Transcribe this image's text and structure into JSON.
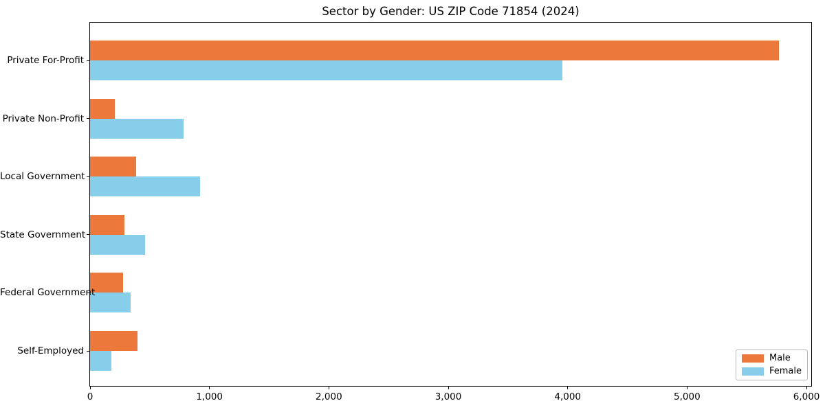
{
  "chart_data": {
    "type": "bar",
    "orientation": "horizontal",
    "title": "Sector by Gender: US ZIP Code 71854 (2024)",
    "categories": [
      "Private For-Profit",
      "Private Non-Profit",
      "Local Government",
      "State Government",
      "Federal Government",
      "Self-Employed"
    ],
    "series": [
      {
        "name": "Male",
        "color": "#ec793b",
        "values": [
          5770,
          210,
          385,
          290,
          275,
          400
        ]
      },
      {
        "name": "Female",
        "color": "#87ceeb",
        "values": [
          3955,
          785,
          920,
          460,
          340,
          180
        ]
      }
    ],
    "xlabel": "",
    "ylabel": "",
    "xlim": [
      0,
      6040
    ],
    "xticks": [
      0,
      1000,
      2000,
      3000,
      4000,
      5000,
      6000
    ],
    "xtick_labels": [
      "0",
      "1,000",
      "2,000",
      "3,000",
      "4,000",
      "5,000",
      "6,000"
    ],
    "grid": false,
    "legend_position": "lower right",
    "style": {
      "axis_color": "#000000",
      "background": "#ffffff",
      "legend_border": "#b7b7b7"
    }
  }
}
